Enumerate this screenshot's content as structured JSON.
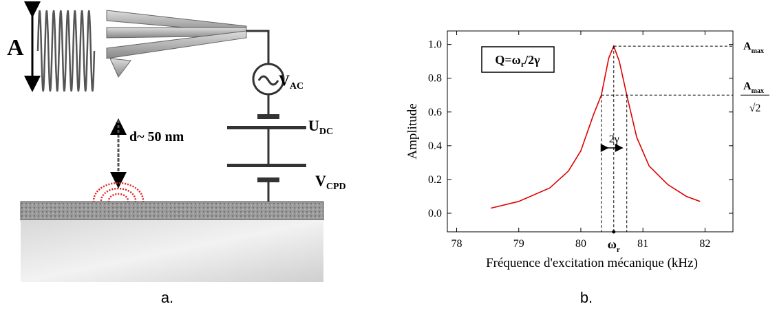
{
  "diagram": {
    "amplitude_label": "A",
    "vac_label": {
      "main": "V",
      "sub": "AC"
    },
    "udc_label": {
      "main": "U",
      "sub": "DC"
    },
    "distance_label": "d~ 50 nm",
    "vcpd_label": {
      "main": "V",
      "sub": "CPD"
    }
  },
  "captions": [
    "a.",
    "b."
  ],
  "chart_data": {
    "type": "line",
    "x_label": "Fréquence d'excitation mécanique (kHz)",
    "y_label": "Amplitude",
    "annotation": {
      "main": "Q=ω",
      "sub": "r",
      "rest": "/2γ"
    },
    "series": [
      {
        "name": "Amplitude",
        "color": "#e00000",
        "x": [
          78.55,
          79.0,
          79.5,
          79.8,
          80.0,
          80.2,
          80.33,
          80.45,
          80.53,
          80.62,
          80.74,
          80.9,
          81.1,
          81.4,
          81.7,
          81.92
        ],
        "values": [
          0.03,
          0.07,
          0.15,
          0.25,
          0.37,
          0.58,
          0.7,
          0.92,
          0.99,
          0.9,
          0.7,
          0.45,
          0.28,
          0.17,
          0.1,
          0.07
        ]
      }
    ],
    "markers": {
      "resonance": {
        "value": 80.53,
        "label": {
          "main": "ω",
          "sub": "r"
        }
      },
      "amax": {
        "value": 0.99,
        "label": {
          "main": "A",
          "sub": "max"
        }
      },
      "half_max": {
        "value": 0.7,
        "label": {
          "main": "A",
          "sub": "max",
          "denominator": "√2"
        }
      },
      "bandwidth": {
        "values": [
          80.33,
          80.74
        ],
        "label": "2γ"
      }
    },
    "xlim": [
      77.85,
      82.45
    ],
    "ylim": [
      -0.11,
      1.08
    ],
    "xticks": [
      78,
      79,
      80,
      81,
      82
    ],
    "yticks": [
      {
        "value": 0,
        "label": "0.0"
      },
      {
        "value": 0.2,
        "label": "0.2"
      },
      {
        "value": 0.4,
        "label": "0.4"
      },
      {
        "value": 0.6,
        "label": "0.6"
      },
      {
        "value": 0.8,
        "label": "0.8"
      },
      {
        "value": 1,
        "label": "1.0"
      }
    ]
  }
}
